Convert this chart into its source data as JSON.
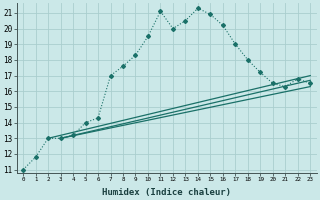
{
  "bg_color": "#cbe8e8",
  "grid_color": "#aacece",
  "line_color": "#1a7068",
  "xlabel": "Humidex (Indice chaleur)",
  "xlim": [
    -0.5,
    23.5
  ],
  "ylim": [
    10.8,
    21.6
  ],
  "yticks": [
    11,
    12,
    13,
    14,
    15,
    16,
    17,
    18,
    19,
    20,
    21
  ],
  "xticks": [
    0,
    1,
    2,
    3,
    4,
    5,
    6,
    7,
    8,
    9,
    10,
    11,
    12,
    13,
    14,
    15,
    16,
    17,
    18,
    19,
    20,
    21,
    22,
    23
  ],
  "curve1_x": [
    0,
    1,
    2,
    3,
    4,
    5,
    6,
    7,
    8,
    9,
    10,
    11,
    12,
    13,
    14,
    15,
    16,
    17,
    18,
    19,
    20,
    21,
    22,
    23
  ],
  "curve1_y": [
    11.0,
    11.8,
    13.0,
    13.0,
    13.2,
    14.0,
    14.3,
    17.0,
    17.6,
    18.3,
    19.5,
    21.1,
    20.0,
    20.5,
    21.3,
    20.9,
    20.2,
    19.0,
    18.0,
    17.2,
    16.5,
    16.3,
    16.8,
    16.5
  ],
  "line2_x": [
    2,
    23
  ],
  "line2_y": [
    13.0,
    17.0
  ],
  "line3_x": [
    3,
    23
  ],
  "line3_y": [
    13.0,
    16.7
  ],
  "line4_x": [
    3,
    23
  ],
  "line4_y": [
    13.0,
    16.3
  ]
}
